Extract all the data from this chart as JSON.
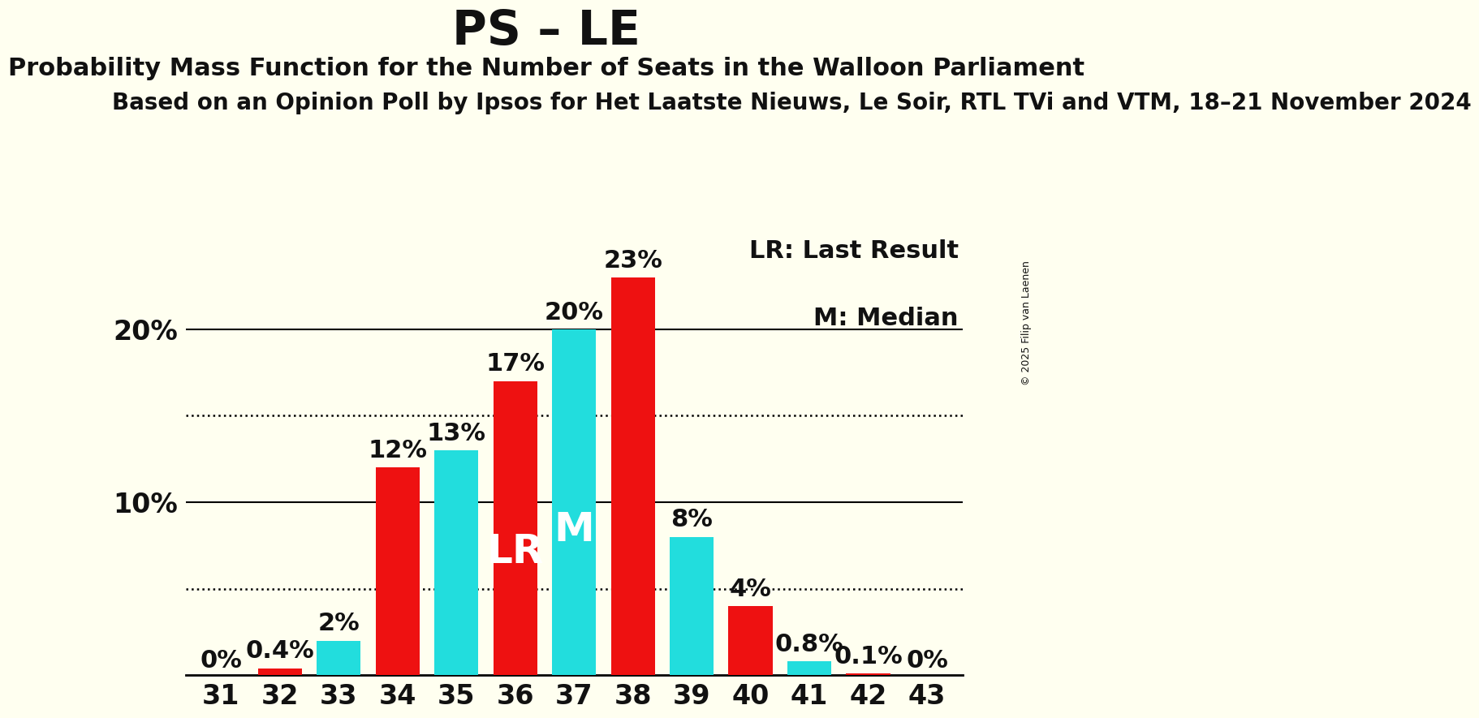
{
  "title": "PS – LE",
  "subtitle": "Probability Mass Function for the Number of Seats in the Walloon Parliament",
  "subtitle2": "Based on an Opinion Poll by Ipsos for Het Laatste Nieuws, Le Soir, RTL TVi and VTM, 18–21 November 2024",
  "watermark": "© 2025 Filip van Laenen",
  "seats": [
    31,
    32,
    33,
    34,
    35,
    36,
    37,
    38,
    39,
    40,
    41,
    42,
    43
  ],
  "values": [
    0.0,
    0.4,
    2.0,
    12.0,
    13.0,
    17.0,
    20.0,
    23.0,
    8.0,
    4.0,
    0.8,
    0.1,
    0.0
  ],
  "colors": [
    "#22DDDD",
    "#EE1111",
    "#22DDDD",
    "#EE1111",
    "#22DDDD",
    "#EE1111",
    "#22DDDD",
    "#EE1111",
    "#22DDDD",
    "#EE1111",
    "#22DDDD",
    "#EE1111",
    "#22DDDD"
  ],
  "lr_color": "#EE1111",
  "pmf_color": "#22DDDD",
  "background_color": "#FFFFF0",
  "text_color": "#111111",
  "lr_label": "LR",
  "m_label": "M",
  "legend_lr": "LR: Last Result",
  "legend_m": "M: Median",
  "ylim": [
    0,
    26.0
  ],
  "bar_width": 0.75,
  "tick_fontsize": 24,
  "title_fontsize": 42,
  "subtitle_fontsize": 22,
  "subtitle2_fontsize": 20,
  "legend_fontsize": 22,
  "annotation_fontsize": 22,
  "lr_seat": 36,
  "m_seat": 37,
  "dotted_lines": [
    5.0,
    15.0
  ],
  "solid_lines": [
    10.0,
    20.0
  ],
  "label_offsets": {
    "0.0": 0.15,
    "default": 0.3
  }
}
